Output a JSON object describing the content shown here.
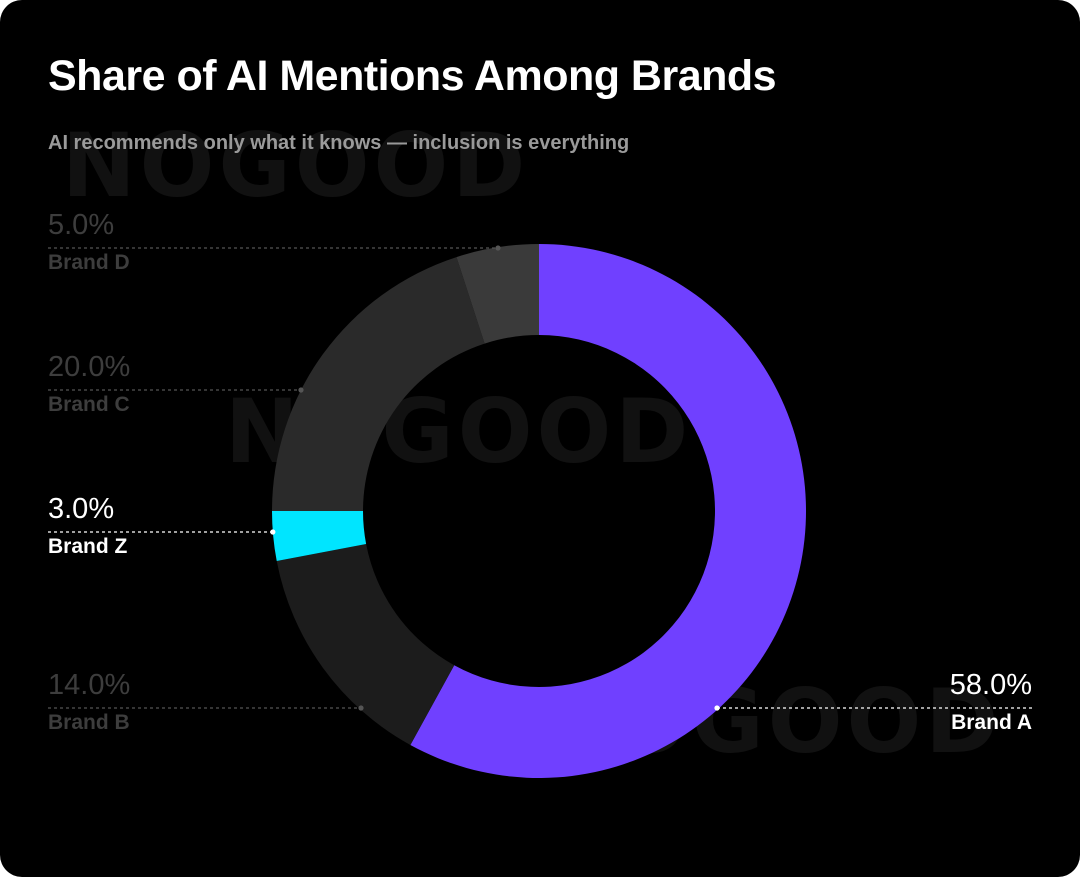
{
  "watermark": "NOGOOD",
  "chart_data": {
    "type": "pie",
    "variant": "donut",
    "title": "Share of AI Mentions Among Brands",
    "subtitle": "AI recommends only what it knows — inclusion is everything",
    "slices": [
      {
        "name": "Brand A",
        "value": 58.0,
        "label": "58.0%",
        "color": "#7040ff",
        "highlight": true
      },
      {
        "name": "Brand B",
        "value": 14.0,
        "label": "14.0%",
        "color": "#1c1c1c",
        "highlight": false
      },
      {
        "name": "Brand Z",
        "value": 3.0,
        "label": "3.0%",
        "color": "#00e5ff",
        "highlight": true
      },
      {
        "name": "Brand C",
        "value": 20.0,
        "label": "20.0%",
        "color": "#2a2a2a",
        "highlight": false
      },
      {
        "name": "Brand D",
        "value": 5.0,
        "label": "5.0%",
        "color": "#3a3a3a",
        "highlight": false
      }
    ],
    "start": "top",
    "direction": "clockwise",
    "legend": "leader-line labels"
  }
}
